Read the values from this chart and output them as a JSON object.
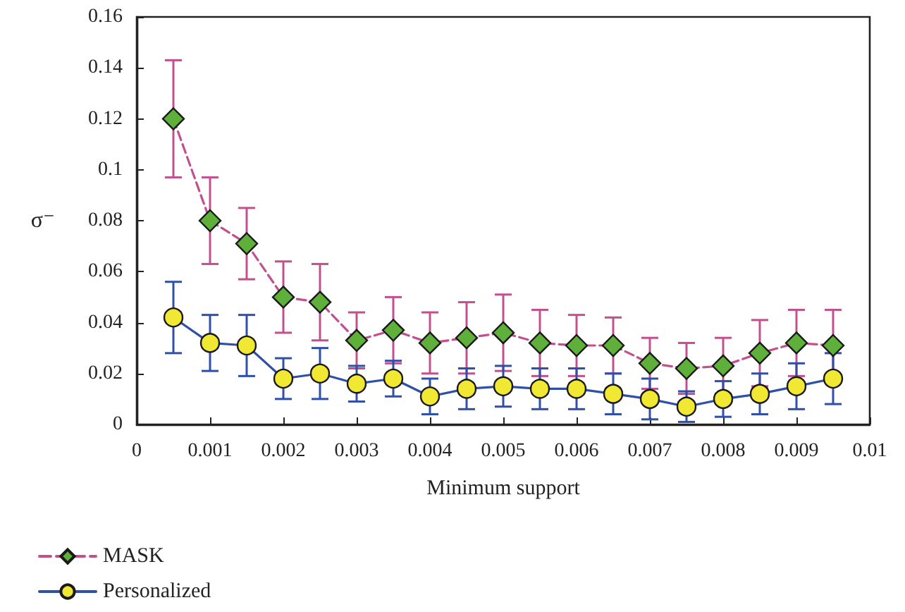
{
  "chart_data": {
    "type": "line",
    "xlabel": "Minimum support",
    "ylabel": "σ⁻",
    "x": [
      0.0005,
      0.001,
      0.0015,
      0.002,
      0.0025,
      0.003,
      0.0035,
      0.004,
      0.0045,
      0.005,
      0.0055,
      0.006,
      0.0065,
      0.007,
      0.0075,
      0.008,
      0.0085,
      0.009,
      0.0095
    ],
    "series": [
      {
        "name": "MASK",
        "color": "#c2508e",
        "colors": [
          "#5fb03a",
          "#5fb03a",
          "#5fb03a",
          "#5fb03a",
          "#5fb03a",
          "#5fb03a",
          "#5fb03a",
          "#5fb03a",
          "#5fb03a",
          "#5fb03a",
          "#5fb03a",
          "#5fb03a",
          "#5fb03a",
          "#5fb03a",
          "#5fb03a",
          "#5fb03a",
          "#5fb03a",
          "#5fb03a",
          "#5fb03a"
        ],
        "line_style": "dashed",
        "marker": "diamond",
        "values": [
          0.12,
          0.08,
          0.071,
          0.05,
          0.048,
          0.033,
          0.037,
          0.032,
          0.034,
          0.036,
          0.032,
          0.031,
          0.031,
          0.024,
          0.022,
          0.023,
          0.028,
          0.032,
          0.031
        ],
        "errors": [
          0.023,
          0.017,
          0.014,
          0.014,
          0.015,
          0.011,
          0.013,
          0.012,
          0.014,
          0.015,
          0.013,
          0.012,
          0.011,
          0.01,
          0.01,
          0.011,
          0.013,
          0.013,
          0.014
        ]
      },
      {
        "name": "Personalized",
        "color": "#2f4fa8",
        "colors": [
          "#f0e832",
          "#f0e832",
          "#f0e832",
          "#f0e832",
          "#f0e832",
          "#f0e832",
          "#f0e832",
          "#f0e832",
          "#f0e832",
          "#f0e832",
          "#f0e832",
          "#f0e832",
          "#f0e832",
          "#f0e832",
          "#f0e832",
          "#f0e832",
          "#f0e832",
          "#f0e832",
          "#f0e832"
        ],
        "line_style": "solid",
        "marker": "circle",
        "values": [
          0.042,
          0.032,
          0.031,
          0.018,
          0.02,
          0.016,
          0.018,
          0.011,
          0.014,
          0.015,
          0.014,
          0.014,
          0.012,
          0.01,
          0.007,
          0.01,
          0.012,
          0.015,
          0.018
        ],
        "errors": [
          0.014,
          0.011,
          0.012,
          0.008,
          0.01,
          0.007,
          0.007,
          0.007,
          0.008,
          0.008,
          0.008,
          0.008,
          0.008,
          0.008,
          0.006,
          0.007,
          0.008,
          0.009,
          0.01
        ]
      }
    ],
    "xlim": [
      0,
      0.01
    ],
    "xticks": [
      0,
      0.001,
      0.002,
      0.003,
      0.004,
      0.005,
      0.006,
      0.007,
      0.008,
      0.009,
      0.01
    ],
    "ylim": [
      0,
      0.16
    ],
    "yticks": [
      0,
      0.02,
      0.04,
      0.06,
      0.08,
      0.1,
      0.12,
      0.14,
      0.16
    ],
    "grid": false,
    "legend": "bottom left"
  }
}
